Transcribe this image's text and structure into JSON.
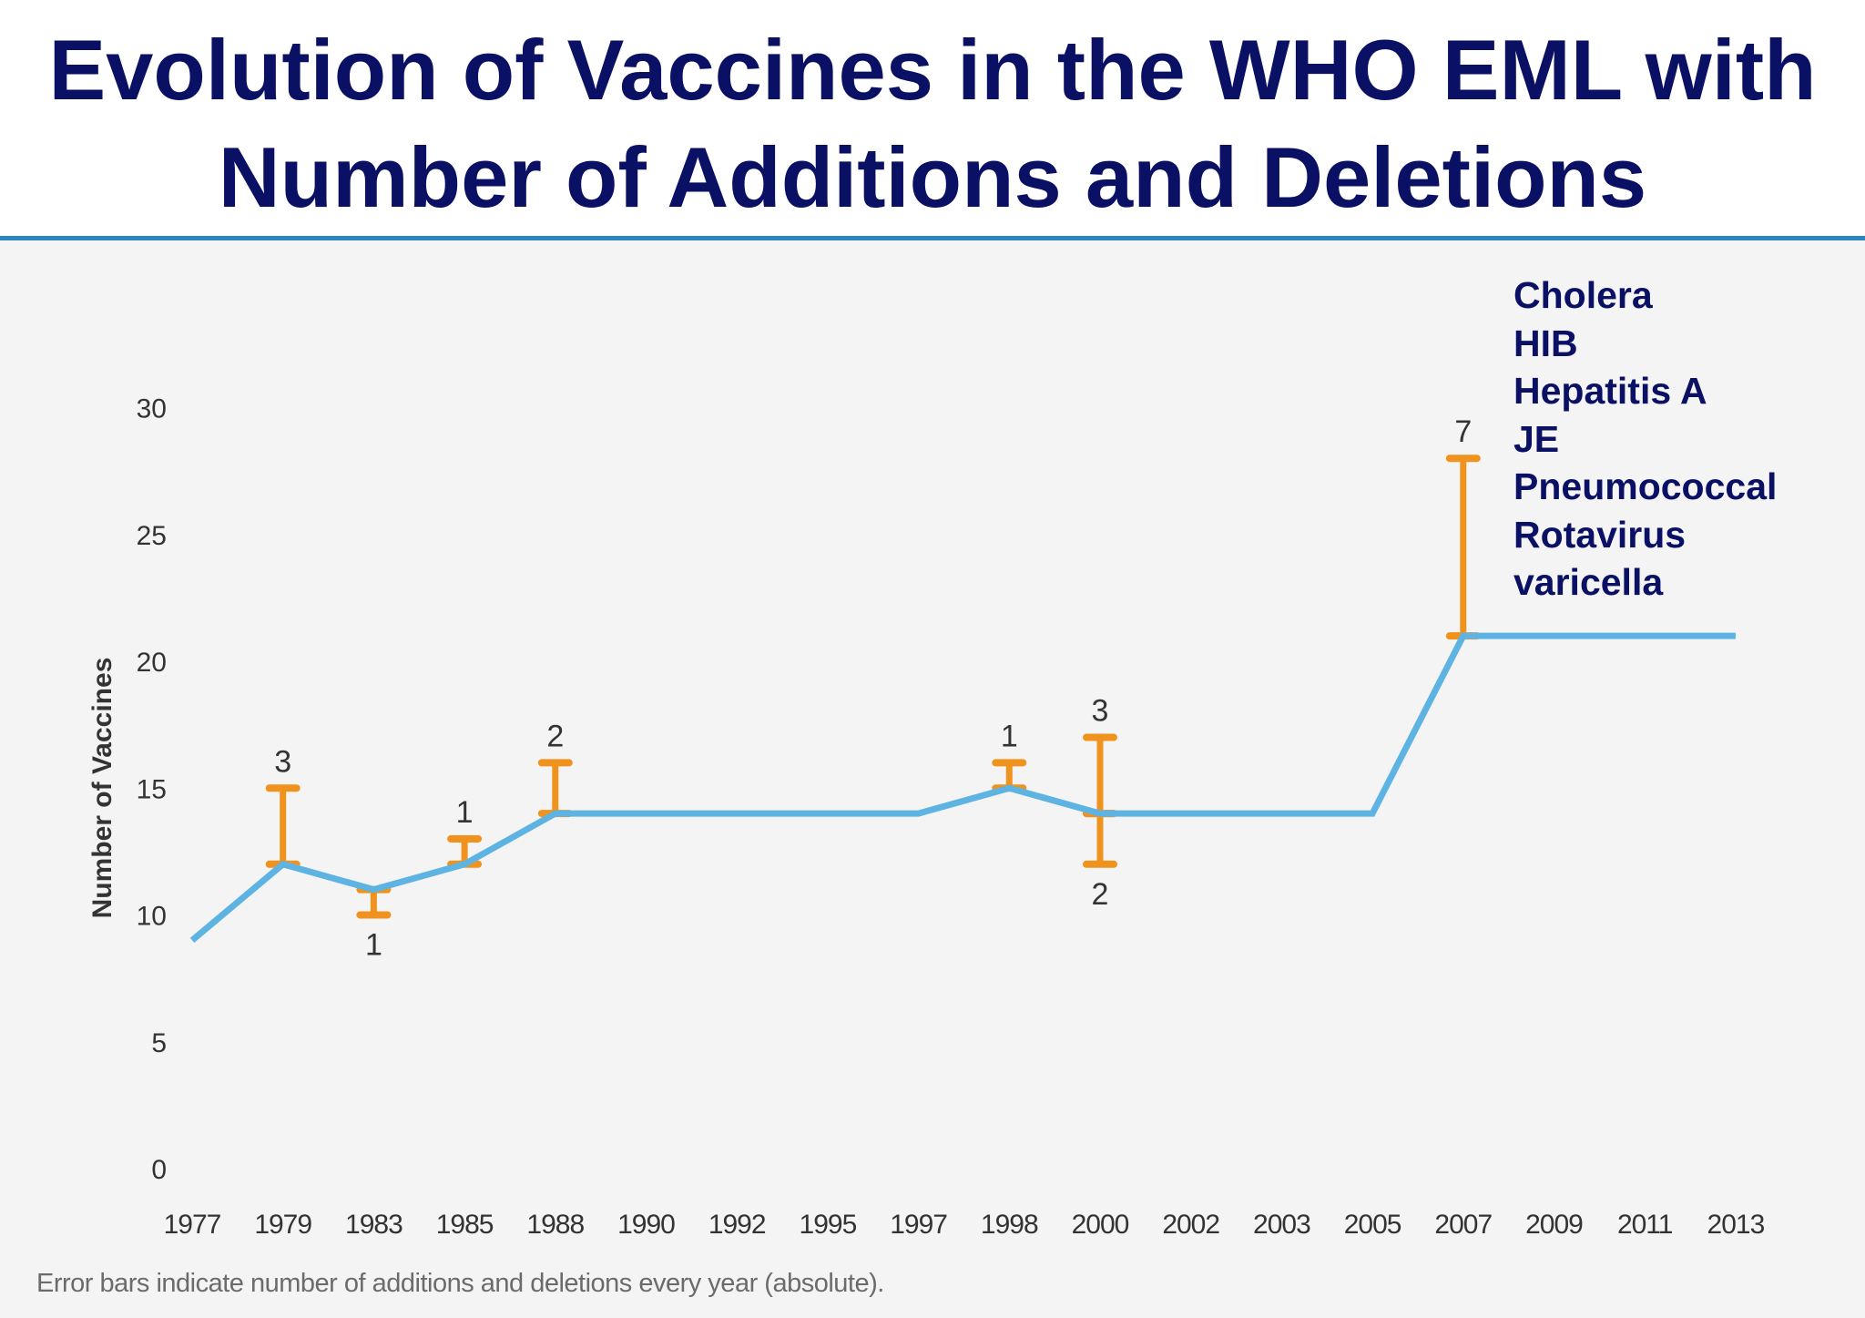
{
  "title_lines": [
    "Evolution of Vaccines in the WHO EML with",
    "Number of Additions and Deletions"
  ],
  "chart_data": {
    "type": "line",
    "title": "Evolution of Vaccines in the WHO EML with Number of Additions and Deletions",
    "ylabel": "Number of Vaccines",
    "xlabel": "",
    "ylim": [
      0,
      30
    ],
    "yticks": [
      0,
      5,
      10,
      15,
      20,
      25,
      30
    ],
    "categories": [
      "1977",
      "1979",
      "1983",
      "1985",
      "1988",
      "1990",
      "1992",
      "1995",
      "1997",
      "1998",
      "2000",
      "2002",
      "2003",
      "2005",
      "2007",
      "2009",
      "2011",
      "2013"
    ],
    "series": [
      {
        "values": [
          9,
          12,
          11,
          12,
          14,
          14,
          14,
          14,
          14,
          15,
          14,
          14,
          14,
          14,
          21,
          21,
          21,
          21
        ]
      }
    ],
    "error_bars": [
      {
        "x": "1979",
        "low": 12,
        "high": 15,
        "label": "3",
        "label_pos": "above"
      },
      {
        "x": "1983",
        "low": 10,
        "high": 11,
        "label": "1",
        "label_pos": "below"
      },
      {
        "x": "1985",
        "low": 12,
        "high": 13,
        "label": "1",
        "label_pos": "above"
      },
      {
        "x": "1988",
        "low": 14,
        "high": 16,
        "label": "2",
        "label_pos": "above"
      },
      {
        "x": "1998",
        "low": 15,
        "high": 16,
        "label": "1",
        "label_pos": "above"
      },
      {
        "x": "2000",
        "low": 14,
        "high": 17,
        "label": "3",
        "label_pos": "above"
      },
      {
        "x": "2000",
        "low": 12,
        "high": 14,
        "label": "2",
        "label_pos": "below"
      },
      {
        "x": "2007",
        "low": 21,
        "high": 28,
        "label": "7",
        "label_pos": "above"
      }
    ],
    "annotation_2007": [
      "Cholera",
      "HIB",
      "Hepatitis A",
      "JE",
      "Pneumococcal",
      "Rotavirus",
      "varicella"
    ],
    "footnote": "Error bars indicate number of additions and deletions every year (absolute).",
    "colors": {
      "line": "#5db3e2",
      "error_bar": "#f0931e",
      "title": "#0a1064",
      "rule": "#2e86c1"
    },
    "grid": false,
    "legend": "none"
  }
}
